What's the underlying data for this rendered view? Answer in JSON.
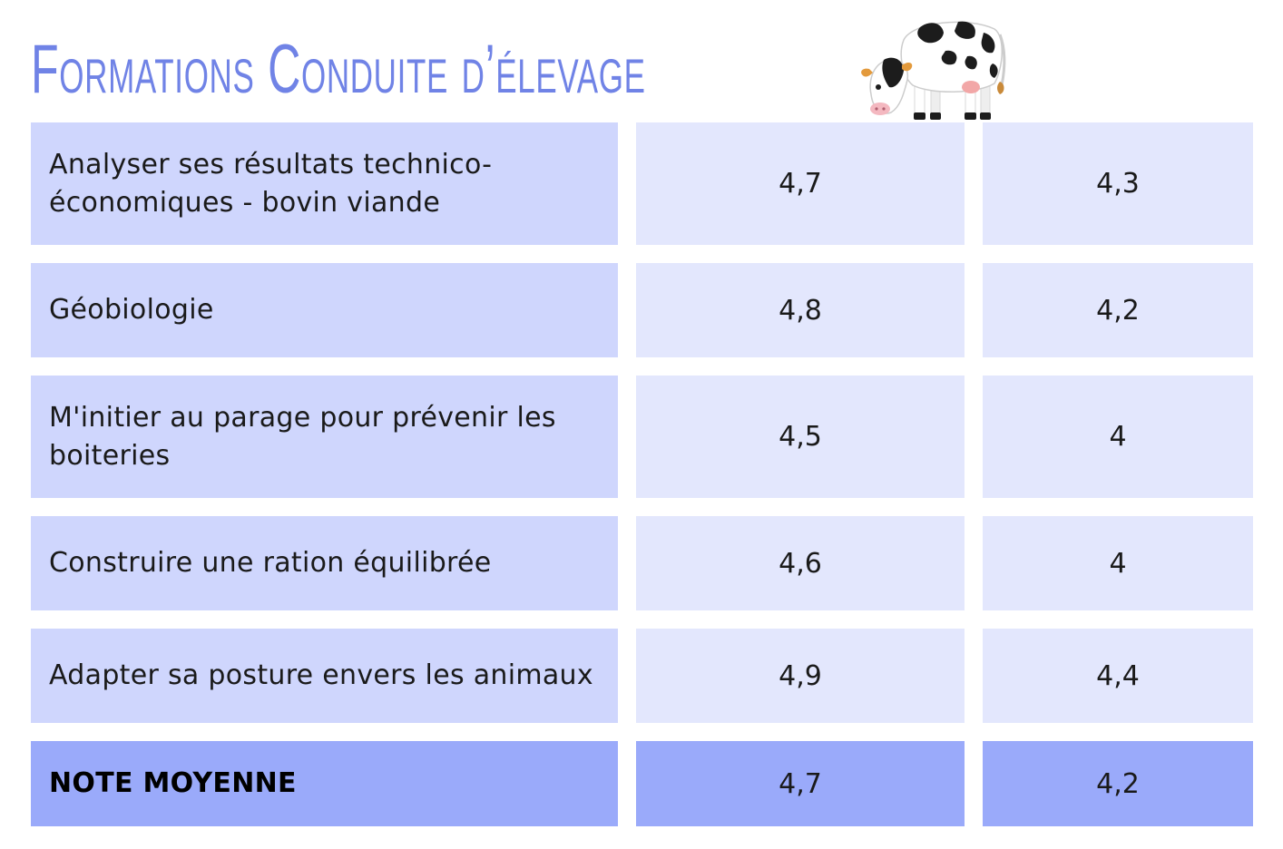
{
  "title": "Formations Conduite d’élevage",
  "illustration": "cow-icon",
  "rows": [
    {
      "label": "Analyser ses résultats technico-économiques - bovin viande",
      "value1": "4,7",
      "value2": "4,3"
    },
    {
      "label": "Géobiologie",
      "value1": "4,8",
      "value2": "4,2"
    },
    {
      "label": "M'initier au parage pour prévenir les boiteries",
      "value1": "4,5",
      "value2": "4"
    },
    {
      "label": "Construire une ration équilibrée",
      "value1": "4,6",
      "value2": "4"
    },
    {
      "label": "Adapter sa posture envers les animaux",
      "value1": "4,9",
      "value2": "4,4"
    }
  ],
  "average": {
    "label": "NOTE MOYENNE",
    "value1": "4,7",
    "value2": "4,2"
  },
  "colors": {
    "title": "#7083e6",
    "label_bg": "#cfd6fd",
    "value_bg": "#e3e7fd",
    "average_bg": "#9aaafa"
  }
}
